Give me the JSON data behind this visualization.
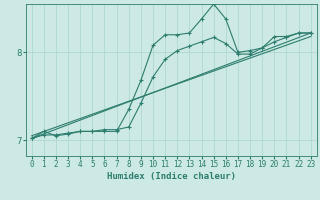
{
  "title": "",
  "xlabel": "Humidex (Indice chaleur)",
  "bg_color": "#cce9e5",
  "line_color": "#2d7d6e",
  "grid_color": "#aad4ce",
  "xlim": [
    -0.5,
    23.5
  ],
  "ylim": [
    6.82,
    8.55
  ],
  "yticks": [
    7,
    8
  ],
  "xticks": [
    0,
    1,
    2,
    3,
    4,
    5,
    6,
    7,
    8,
    9,
    10,
    11,
    12,
    13,
    14,
    15,
    16,
    17,
    18,
    19,
    20,
    21,
    22,
    23
  ],
  "line_jagged_x": [
    0,
    1,
    2,
    3,
    4,
    5,
    6,
    7,
    8,
    9,
    10,
    11,
    12,
    13,
    14,
    15,
    16,
    17,
    18,
    19,
    20,
    21,
    22,
    23
  ],
  "line_jagged_y": [
    7.02,
    7.1,
    7.05,
    7.07,
    7.1,
    7.1,
    7.1,
    7.1,
    7.35,
    7.68,
    8.08,
    8.2,
    8.2,
    8.22,
    8.38,
    8.55,
    8.38,
    8.0,
    8.02,
    8.05,
    8.18,
    8.18,
    8.22,
    8.22
  ],
  "line_smooth_x": [
    0,
    1,
    2,
    3,
    4,
    5,
    6,
    7,
    8,
    9,
    10,
    11,
    12,
    13,
    14,
    15,
    16,
    17,
    18,
    19,
    20,
    21,
    22,
    23
  ],
  "line_smooth_y": [
    7.02,
    7.06,
    7.06,
    7.08,
    7.1,
    7.1,
    7.12,
    7.12,
    7.15,
    7.42,
    7.72,
    7.92,
    8.02,
    8.07,
    8.12,
    8.17,
    8.1,
    7.98,
    7.98,
    8.05,
    8.12,
    8.17,
    8.22,
    8.22
  ],
  "ref_line1_x": [
    0,
    23
  ],
  "ref_line1_y": [
    7.02,
    8.22
  ],
  "ref_line2_x": [
    0,
    23
  ],
  "ref_line2_y": [
    7.05,
    8.18
  ]
}
